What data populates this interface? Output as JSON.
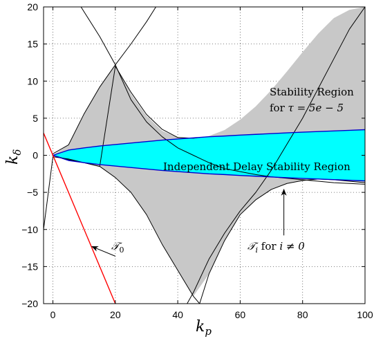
{
  "chart_data": {
    "type": "area",
    "xlabel": "k",
    "xlabel_subscript": "p",
    "ylabel": "k",
    "ylabel_subscript": "δ",
    "xlim": [
      -3,
      100
    ],
    "ylim": [
      -20,
      20
    ],
    "x_ticks": [
      0,
      20,
      40,
      60,
      80,
      100
    ],
    "y_ticks": [
      -20,
      -15,
      -10,
      -5,
      0,
      5,
      10,
      15,
      20
    ],
    "x_tick_labels": [
      "0",
      "20",
      "40",
      "60",
      "80",
      "100"
    ],
    "y_tick_labels": [
      "−20",
      "−15",
      "−10",
      "−5",
      "0",
      "5",
      "10",
      "15",
      "20"
    ],
    "grid": true,
    "colors": {
      "stability_region": "#c8c8c8",
      "independent_region": "#00ffff",
      "independent_boundary": "#0000cc",
      "t0_line": "#ff0000",
      "curves": "#000000"
    },
    "series": [
      {
        "x": [
          0,
          5,
          10,
          15,
          20,
          25,
          30,
          35,
          40,
          45,
          50,
          55,
          60,
          65,
          70,
          75,
          80,
          85,
          90,
          95,
          100
        ],
        "upper": [
          0,
          1.4,
          5.6,
          9.2,
          12.2,
          8.3,
          5.3,
          3.3,
          2.4,
          2.3,
          2.6,
          3.4,
          4.8,
          6.6,
          8.8,
          11.3,
          13.9,
          16.4,
          18.5,
          19.6,
          20
        ],
        "lower": [
          0,
          -0.6,
          -1.0,
          -1.5,
          -3.0,
          -5.0,
          -8.0,
          -12.0,
          -15.5,
          -19.0,
          -16.0,
          -11.5,
          -8.0,
          -6.0,
          -4.6,
          -3.8,
          -3.4,
          -3.2,
          -3.3,
          -3.5,
          -3.7
        ]
      },
      {
        "x": [
          0,
          5,
          10,
          15,
          20,
          25,
          30,
          35,
          40,
          45,
          50,
          55,
          60,
          65,
          70,
          75,
          80,
          85,
          90,
          95,
          100
        ],
        "upper": [
          0,
          0.7,
          1.0,
          1.25,
          1.45,
          1.65,
          1.85,
          2.05,
          2.2,
          2.35,
          2.5,
          2.6,
          2.72,
          2.82,
          2.92,
          3.02,
          3.12,
          3.2,
          3.28,
          3.36,
          3.45
        ],
        "lower": [
          0,
          -0.7,
          -1.0,
          -1.25,
          -1.45,
          -1.65,
          -1.85,
          -2.05,
          -2.2,
          -2.35,
          -2.5,
          -2.6,
          -2.72,
          -2.82,
          -2.92,
          -3.02,
          -3.12,
          -3.2,
          -3.28,
          -3.36,
          -3.45
        ]
      },
      {
        "x": [
          -3,
          20
        ],
        "y": [
          3,
          -20
        ]
      }
    ],
    "curves": [
      {
        "x": [
          -3,
          0,
          5,
          10,
          15,
          20,
          25,
          30,
          35,
          40,
          45,
          47
        ],
        "y": [
          -10,
          -0.2,
          -0.5,
          -1.0,
          -1.5,
          12.0,
          8.5,
          5.5,
          3.5,
          2.4,
          2.3,
          2.4
        ]
      },
      {
        "x": [
          9,
          15,
          20,
          25,
          30,
          35,
          40,
          45,
          47,
          50,
          55,
          60,
          65,
          70,
          75,
          80,
          85,
          90,
          95,
          100
        ],
        "y": [
          20,
          16,
          12.2,
          7.5,
          4.5,
          2.5,
          1.0,
          0.0,
          -0.4,
          -1.0,
          -1.8,
          -2.2,
          -2.6,
          -2.9,
          -3.1,
          -3.3,
          -3.5,
          -3.7,
          -3.8,
          -3.9
        ]
      },
      {
        "x": [
          0,
          5,
          10,
          15,
          20,
          25,
          30,
          33
        ],
        "y": [
          0.2,
          1.4,
          5.6,
          9.2,
          12.2,
          15.0,
          18.0,
          20
        ]
      },
      {
        "x": [
          0,
          5,
          10,
          15,
          20,
          25,
          30,
          35,
          40,
          45,
          47,
          50,
          55,
          60,
          65,
          70,
          75,
          80,
          85,
          90,
          95,
          100
        ],
        "y": [
          0,
          -0.6,
          -1.0,
          -1.5,
          -3.0,
          -5.0,
          -8.0,
          -12.0,
          -15.5,
          -19.0,
          -20,
          -16.0,
          -11.5,
          -8.0,
          -6.0,
          -4.6,
          -3.8,
          -3.4,
          -3.2,
          -3.3,
          -3.5,
          -3.7
        ]
      },
      {
        "x": [
          43,
          45,
          50,
          55,
          60,
          65,
          70,
          75,
          80,
          85,
          90,
          95,
          100
        ],
        "y": [
          -20,
          -18.5,
          -14.0,
          -10.5,
          -7.5,
          -5.0,
          -2.0,
          1.5,
          5.0,
          9.0,
          13.0,
          17.0,
          20
        ]
      }
    ],
    "annotations": {
      "stability_line1": "Stability Region",
      "stability_line2_prefix": "for ",
      "stability_line2_math": "τ = 5e − 5",
      "independent": "Independent Delay Stability Region",
      "t0_label": "𝒯",
      "t0_sub": "0",
      "ti_label": "𝒯",
      "ti_sub": "i",
      "ti_rest": " for ",
      "ti_cond": "i ≠ 0"
    },
    "arrows": [
      {
        "from": [
          20,
          -13.6
        ],
        "to": [
          12.5,
          -12.3
        ]
      },
      {
        "from": [
          74,
          -10.8
        ],
        "to": [
          74,
          -4.6
        ]
      }
    ]
  }
}
